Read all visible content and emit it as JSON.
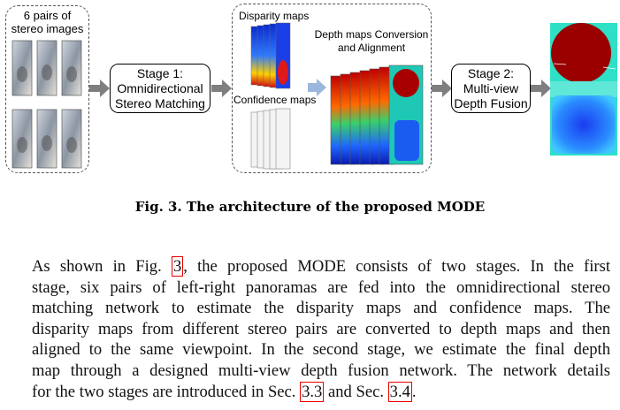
{
  "figure": {
    "input_label": [
      "6 pairs of",
      "stereo images"
    ],
    "stage1": [
      "Stage 1:",
      "Omnidirectional",
      "Stereo Matching"
    ],
    "disparity_label": "Disparity maps",
    "confidence_label": "Confidence maps",
    "conversion_label": [
      "Depth maps Conversion",
      "and Alignment"
    ],
    "stage2": [
      "Stage 2:",
      "Multi-view",
      "Depth Fusion"
    ],
    "colors": {
      "arrow": "#7f7f7f",
      "stage_border": "#000000",
      "ref_box": "#e00000"
    }
  },
  "caption": "Fig. 3. The architecture of the proposed MODE",
  "paragraph": {
    "l1": [
      "As shown in Fig. ",
      "3",
      ", the proposed MODE consists of two stages. In the first"
    ],
    "l2": "stage, six pairs of left-right panoramas are fed into the omnidirectional stereo",
    "l3": "matching network to estimate the disparity maps and confidence maps. The",
    "l4": "disparity maps from different stereo pairs are converted to depth maps and then",
    "l5": "aligned to the same viewpoint. In the second stage, we estimate the final depth",
    "l6": "map through a designed multi-view depth fusion network. The network details",
    "l7": [
      "for the two stages are introduced in Sec. ",
      "3.3",
      " and Sec. ",
      "3.4",
      "."
    ]
  }
}
